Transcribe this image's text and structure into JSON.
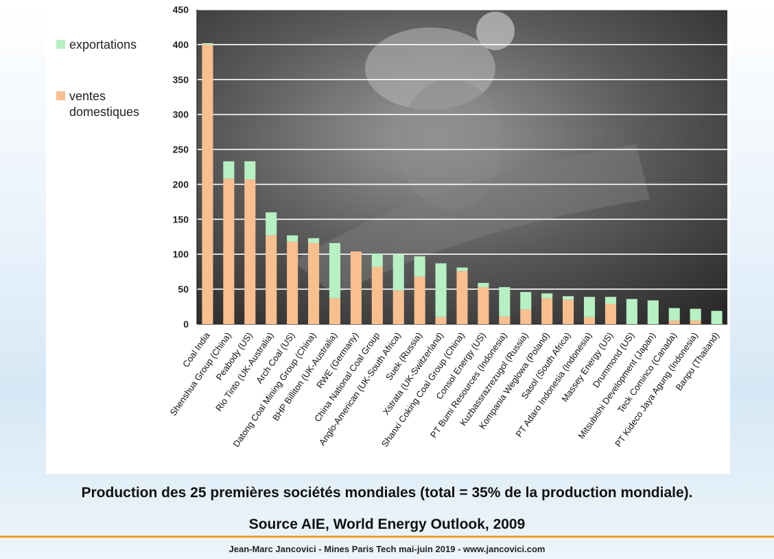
{
  "legend": {
    "exports_label": "exportations",
    "domestic_label_1": "ventes",
    "domestic_label_2": "domestiques"
  },
  "caption": "Production des 25 premières sociétés mondiales (total = 35% de la production mondiale).",
  "source": "Source AIE, World Energy Outlook, 2009",
  "footer": "Jean-Marc Jancovici - Mines Paris Tech mai-juin 2019 - www.jancovici.com",
  "colors": {
    "domestic": "#f9bf8f",
    "exports": "#b7f0c3",
    "divider": "#f0a030"
  },
  "chart_data": {
    "type": "bar",
    "stacked": true,
    "ylim": [
      0,
      450
    ],
    "yticks": [
      0,
      50,
      100,
      150,
      200,
      250,
      300,
      350,
      400,
      450
    ],
    "grid": true,
    "legend_position": "left",
    "categories": [
      "Coal India",
      "Shenshua Group (China)",
      "Peabody (US)",
      "Rio Tinto (UK-Australia)",
      "Arch Coal (US)",
      "Datong Coal Mining Group (China)",
      "BHP Billiton (UK-Australia)",
      "RWE (Germany)",
      "China National Coal Group",
      "Anglo-American (UK-South Africa)",
      "Suek (Russia)",
      "Xstrata (UK-Switzerland)",
      "Shanxi Coking Coal Group (China)",
      "Consol Energy (US)",
      "PT Bumi Resources (Indonesia)",
      "Kuzbassrazrezugol (Russia)",
      "Kompania Weglowa (Poland)",
      "Sasol (South Africa)",
      "PT Adaro Indonesia (Indonesia)",
      "Massey Energy (US)",
      "Drummond (US)",
      "Mitsubishi Development (Japan)",
      "Teck Cominco (Canada)",
      "PT Kideco Jaya Agung (Indonesia)",
      "Banpu (Thailand)"
    ],
    "series": [
      {
        "name": "ventes domestiques",
        "values": [
          400,
          208,
          207,
          127,
          118,
          116,
          37,
          104,
          82,
          48,
          68,
          10,
          76,
          53,
          11,
          21,
          37,
          35,
          10,
          29,
          0,
          0,
          5,
          5,
          0
        ]
      },
      {
        "name": "exportations",
        "values": [
          2,
          25,
          26,
          33,
          9,
          7,
          79,
          0,
          19,
          52,
          29,
          77,
          5,
          6,
          42,
          25,
          7,
          5,
          29,
          10,
          36,
          34,
          18,
          17,
          19
        ]
      }
    ]
  }
}
